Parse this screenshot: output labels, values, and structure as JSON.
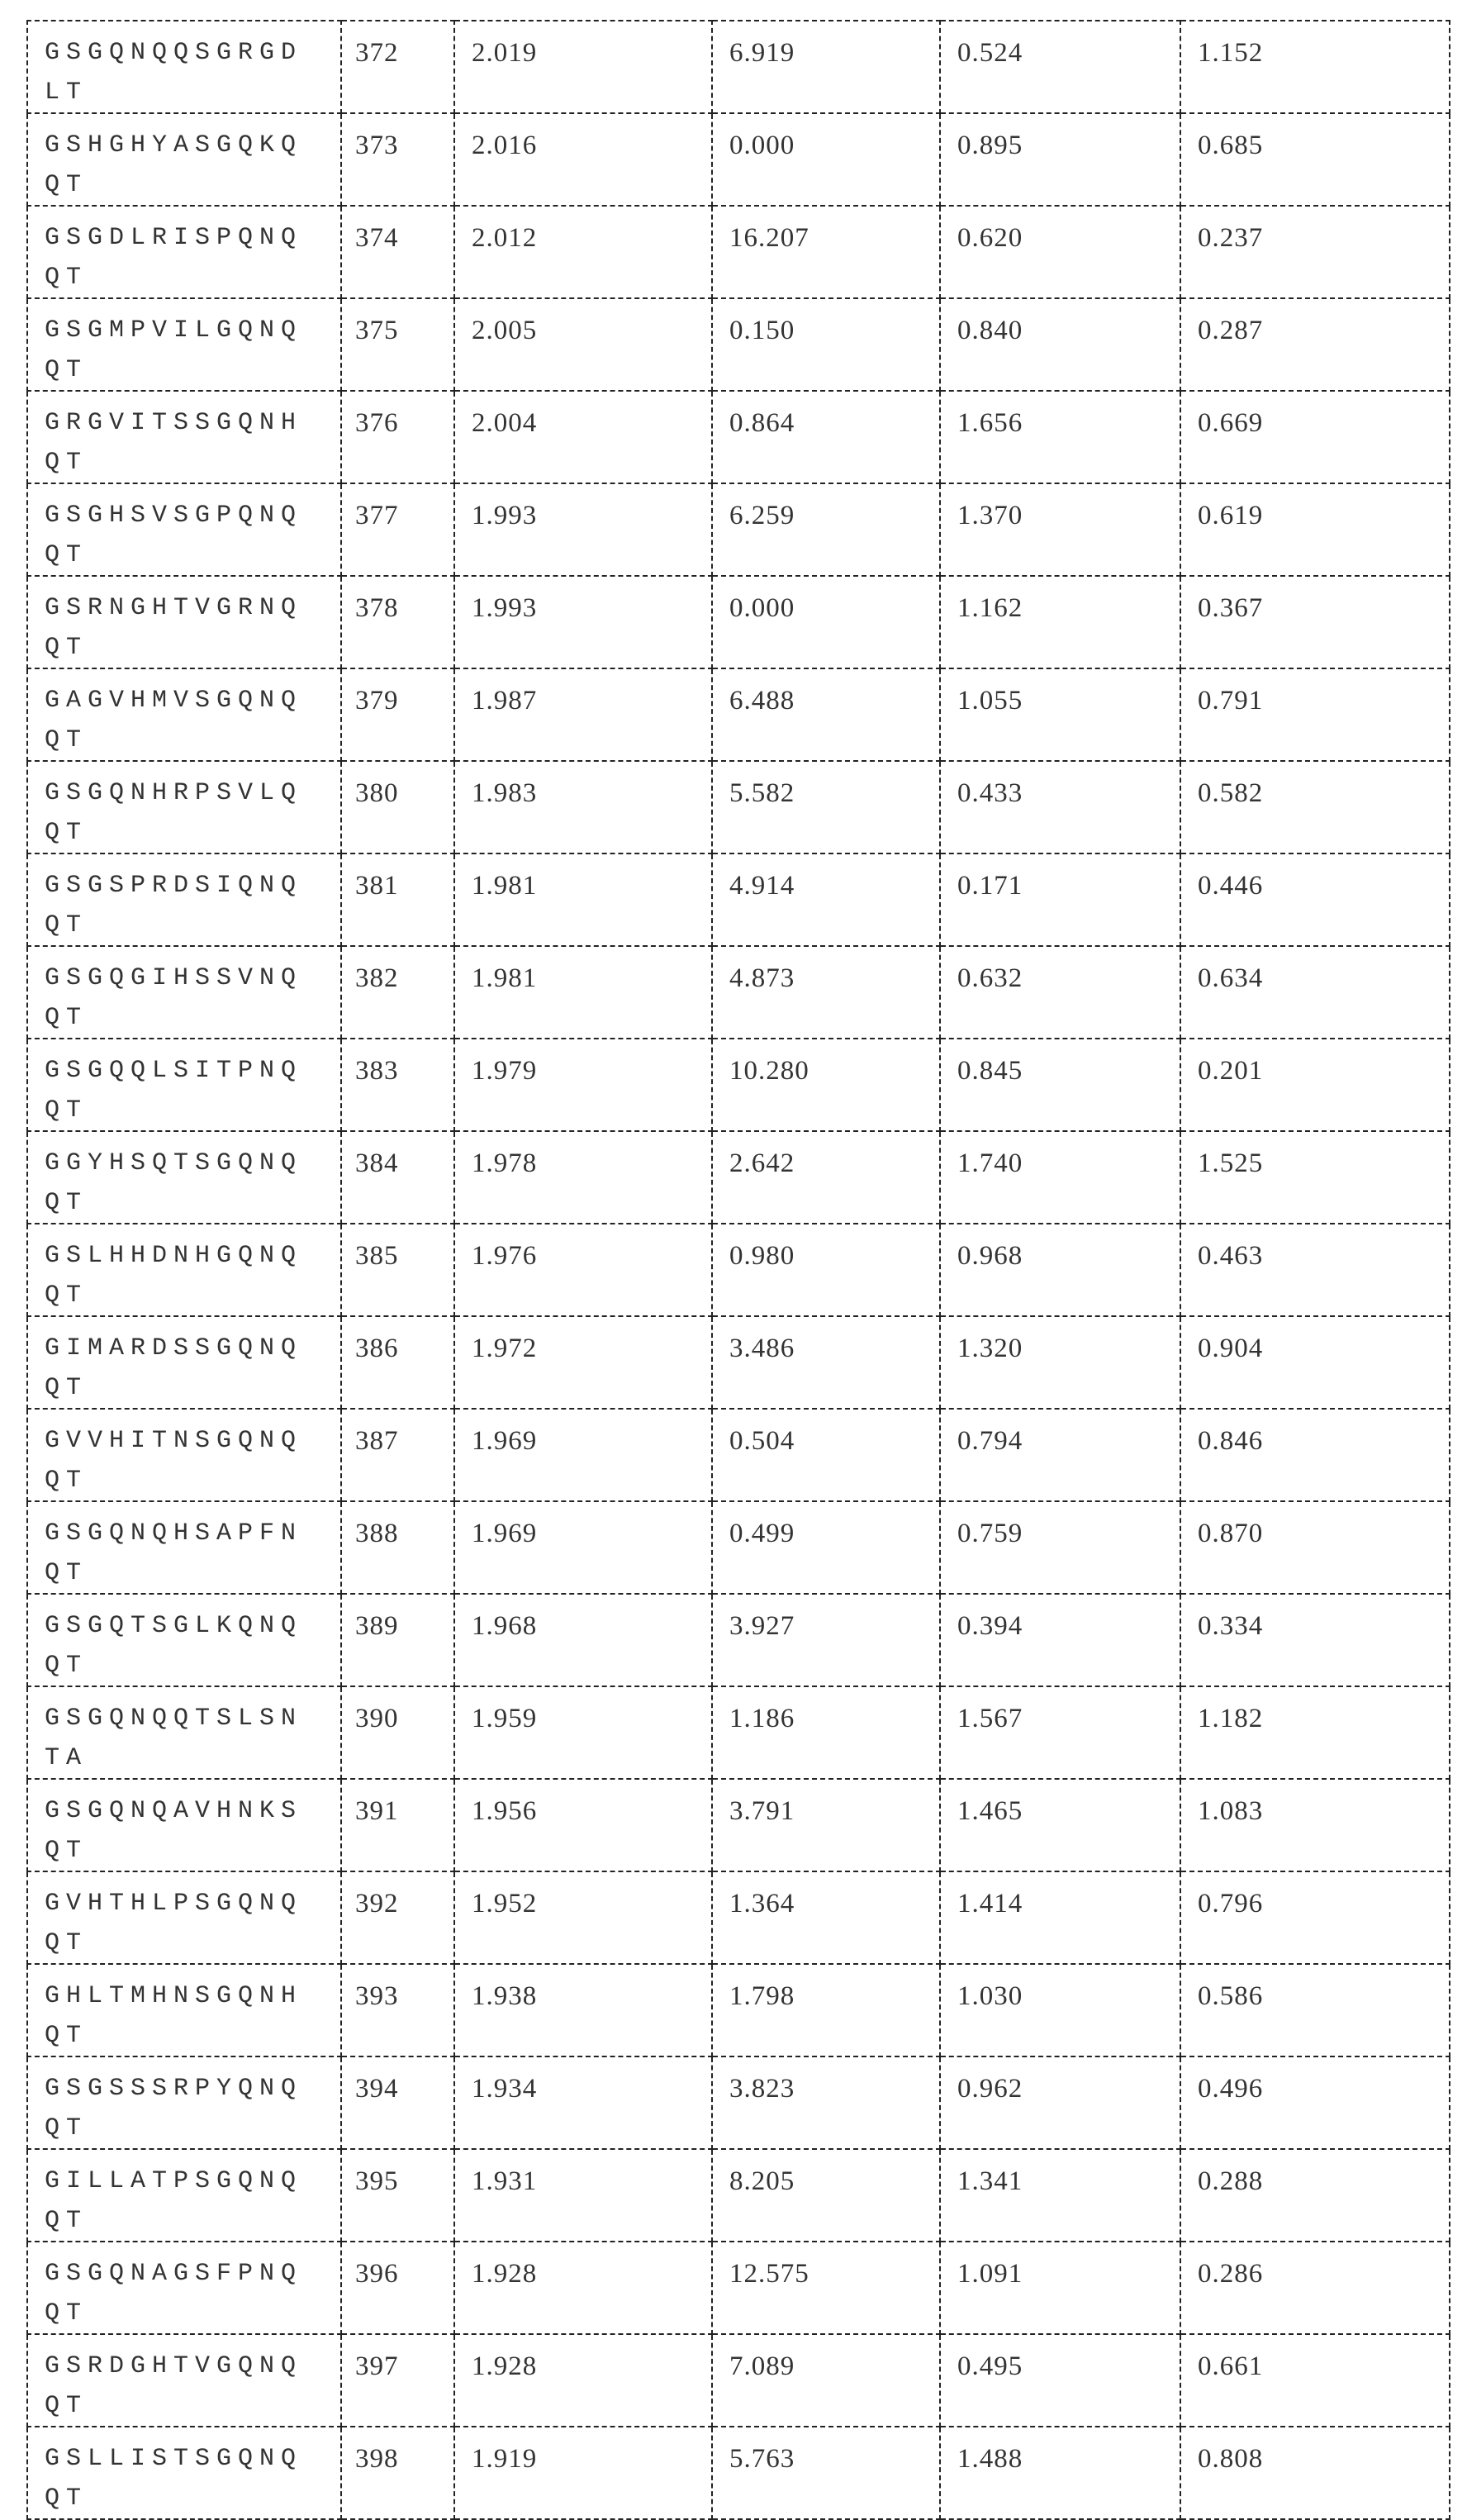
{
  "table": {
    "rows": [
      [
        "GSGQNQQSGRGDLT",
        "372",
        "2.019",
        "6.919",
        "0.524",
        "1.152"
      ],
      [
        "GSHGHYASGQKQQT",
        "373",
        "2.016",
        "0.000",
        "0.895",
        "0.685"
      ],
      [
        "GSGDLRISPQNQQT",
        "374",
        "2.012",
        "16.207",
        "0.620",
        "0.237"
      ],
      [
        "GSGMPVILGQNQQT",
        "375",
        "2.005",
        "0.150",
        "0.840",
        "0.287"
      ],
      [
        "GRGVITSSGQNHQT",
        "376",
        "2.004",
        "0.864",
        "1.656",
        "0.669"
      ],
      [
        "GSGHSVSGPQNQQT",
        "377",
        "1.993",
        "6.259",
        "1.370",
        "0.619"
      ],
      [
        "GSRNGHTVGRNQQT",
        "378",
        "1.993",
        "0.000",
        "1.162",
        "0.367"
      ],
      [
        "GAGVHMVSGQNQQT",
        "379",
        "1.987",
        "6.488",
        "1.055",
        "0.791"
      ],
      [
        "GSGQNHRPSVLQQT",
        "380",
        "1.983",
        "5.582",
        "0.433",
        "0.582"
      ],
      [
        "GSGSPRDSIQNQQT",
        "381",
        "1.981",
        "4.914",
        "0.171",
        "0.446"
      ],
      [
        "GSGQGIHSSVNQQT",
        "382",
        "1.981",
        "4.873",
        "0.632",
        "0.634"
      ],
      [
        "GSGQQLSITPNQQT",
        "383",
        "1.979",
        "10.280",
        "0.845",
        "0.201"
      ],
      [
        "GGYHSQTSGQNQQT",
        "384",
        "1.978",
        "2.642",
        "1.740",
        "1.525"
      ],
      [
        "GSLHHDNHGQNQQT",
        "385",
        "1.976",
        "0.980",
        "0.968",
        "0.463"
      ],
      [
        "GIMARDSSGQNQQT",
        "386",
        "1.972",
        "3.486",
        "1.320",
        "0.904"
      ],
      [
        "GVVHITNSGQNQQT",
        "387",
        "1.969",
        "0.504",
        "0.794",
        "0.846"
      ],
      [
        "GSGQNQHSAPFNQT",
        "388",
        "1.969",
        "0.499",
        "0.759",
        "0.870"
      ],
      [
        "GSGQTSGLKQNQQT",
        "389",
        "1.968",
        "3.927",
        "0.394",
        "0.334"
      ],
      [
        "GSGQNQQTSLSNTA",
        "390",
        "1.959",
        "1.186",
        "1.567",
        "1.182"
      ],
      [
        "GSGQNQAVHNKSQT",
        "391",
        "1.956",
        "3.791",
        "1.465",
        "1.083"
      ],
      [
        "GVHTHLPSGQNQQT",
        "392",
        "1.952",
        "1.364",
        "1.414",
        "0.796"
      ],
      [
        "GHLTMHNSGQNHQT",
        "393",
        "1.938",
        "1.798",
        "1.030",
        "0.586"
      ],
      [
        "GSGSSSRPYQNQQT",
        "394",
        "1.934",
        "3.823",
        "0.962",
        "0.496"
      ],
      [
        "GILLATPSGQNQQT",
        "395",
        "1.931",
        "8.205",
        "1.341",
        "0.288"
      ],
      [
        "GSGQNAGSFPNQQT",
        "396",
        "1.928",
        "12.575",
        "1.091",
        "0.286"
      ],
      [
        "GSRDGHTVGQNQQT",
        "397",
        "1.928",
        "7.089",
        "0.495",
        "0.661"
      ],
      [
        "GSLLISTSGQNQQT",
        "398",
        "1.919",
        "5.763",
        "1.488",
        "0.808"
      ]
    ]
  }
}
